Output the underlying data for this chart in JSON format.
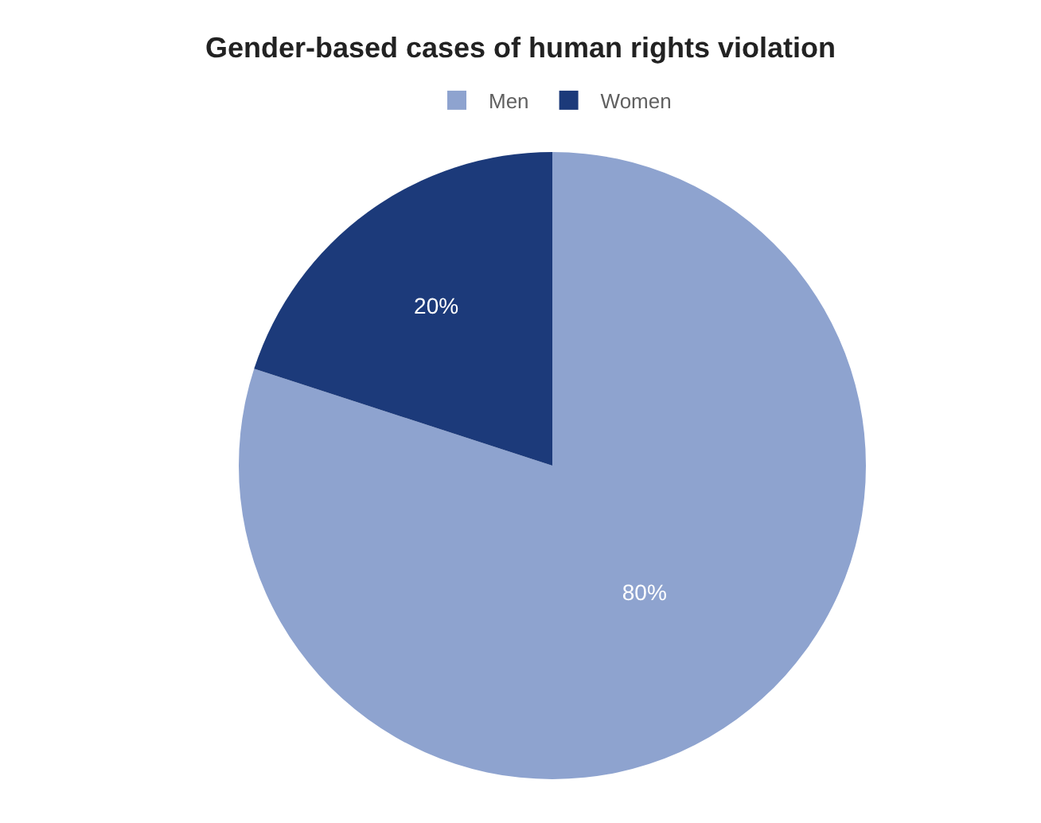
{
  "chart_data": {
    "type": "pie",
    "title": "Gender-based cases of human rights violation",
    "categories": [
      "Men",
      "Women"
    ],
    "values": [
      80,
      20
    ],
    "colors": [
      "#8ea3cf",
      "#1c3a7a"
    ],
    "value_labels": [
      "80%",
      "20%"
    ],
    "legend": "top"
  }
}
